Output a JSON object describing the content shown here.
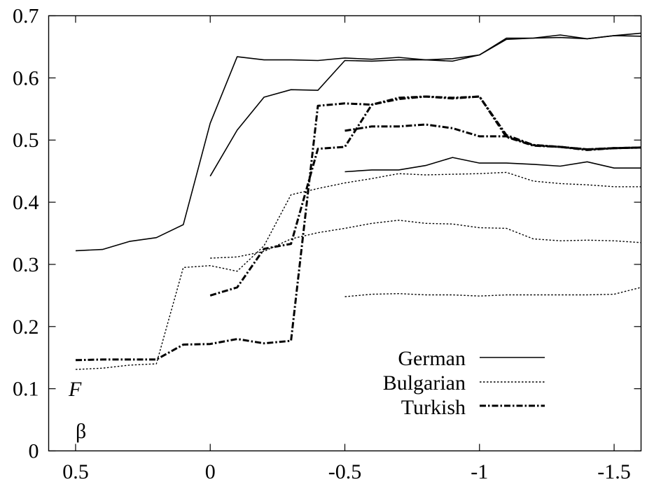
{
  "chart_data": {
    "type": "line",
    "ylabel": "F",
    "xlabel": "β",
    "xlim": [
      0.6,
      -1.6
    ],
    "ylim": [
      0,
      0.7
    ],
    "x_reversed": true,
    "x_ticks": [
      0.5,
      0,
      -0.5,
      -1,
      -1.5
    ],
    "x_tick_labels": [
      "0.5",
      "0",
      "-0.5",
      "-1",
      "-1.5"
    ],
    "y_ticks": [
      0,
      0.1,
      0.2,
      0.3,
      0.4,
      0.5,
      0.6,
      0.7
    ],
    "y_tick_labels": [
      "0",
      "0.1",
      "0.2",
      "0.3",
      "0.4",
      "0.5",
      "0.6",
      "0.7"
    ],
    "grid": false,
    "legend_position": "bottom-right",
    "legend": [
      {
        "label": "German",
        "style": "solid"
      },
      {
        "label": "Bulgarian",
        "style": "dotted"
      },
      {
        "label": "Turkish",
        "style": "dashdot"
      }
    ],
    "series": [
      {
        "language": "German",
        "style": "solid",
        "x": [
          0.5,
          0.4,
          0.3,
          0.2,
          0.1,
          0,
          -0.1,
          -0.2,
          -0.3,
          -0.4,
          -0.5,
          -0.6,
          -0.7,
          -0.8,
          -0.9,
          -1.0,
          -1.1,
          -1.2,
          -1.3,
          -1.4,
          -1.5,
          -1.6
        ],
        "y": [
          0.322,
          0.324,
          0.337,
          0.343,
          0.364,
          0.527,
          0.634,
          0.629,
          0.629,
          0.628,
          0.632,
          0.63,
          0.633,
          0.629,
          0.631,
          0.637,
          0.664,
          0.664,
          0.665,
          0.663,
          0.668,
          0.667
        ]
      },
      {
        "language": "German",
        "style": "solid",
        "x": [
          0,
          -0.1,
          -0.2,
          -0.3,
          -0.4,
          -0.5,
          -0.6,
          -0.7,
          -0.8,
          -0.9,
          -1.0,
          -1.1,
          -1.2,
          -1.3,
          -1.4,
          -1.5,
          -1.6
        ],
        "y": [
          0.442,
          0.516,
          0.569,
          0.581,
          0.58,
          0.628,
          0.627,
          0.629,
          0.629,
          0.627,
          0.637,
          0.662,
          0.664,
          0.669,
          0.663,
          0.668,
          0.672
        ]
      },
      {
        "language": "German",
        "style": "solid",
        "x": [
          -0.5,
          -0.6,
          -0.7,
          -0.8,
          -0.9,
          -1.0,
          -1.1,
          -1.2,
          -1.3,
          -1.4,
          -1.5,
          -1.6
        ],
        "y": [
          0.449,
          0.452,
          0.452,
          0.459,
          0.472,
          0.463,
          0.463,
          0.461,
          0.458,
          0.465,
          0.455,
          0.455
        ]
      },
      {
        "language": "Bulgarian",
        "style": "dotted",
        "x": [
          0.5,
          0.4,
          0.3,
          0.2,
          0.1,
          0,
          -0.1,
          -0.2,
          -0.3,
          -0.4,
          -0.5,
          -0.6,
          -0.7,
          -0.8,
          -0.9,
          -1.0,
          -1.1,
          -1.2,
          -1.3,
          -1.4,
          -1.5,
          -1.6
        ],
        "y": [
          0.131,
          0.133,
          0.138,
          0.14,
          0.295,
          0.298,
          0.289,
          0.33,
          0.412,
          0.422,
          0.431,
          0.438,
          0.446,
          0.444,
          0.445,
          0.446,
          0.448,
          0.434,
          0.43,
          0.428,
          0.425,
          0.425
        ]
      },
      {
        "language": "Bulgarian",
        "style": "dotted",
        "x": [
          0,
          -0.1,
          -0.2,
          -0.3,
          -0.4,
          -0.5,
          -0.6,
          -0.7,
          -0.8,
          -0.9,
          -1.0,
          -1.1,
          -1.2,
          -1.3,
          -1.4,
          -1.5,
          -1.6
        ],
        "y": [
          0.31,
          0.312,
          0.321,
          0.341,
          0.351,
          0.358,
          0.366,
          0.371,
          0.366,
          0.365,
          0.359,
          0.358,
          0.341,
          0.338,
          0.339,
          0.338,
          0.335
        ]
      },
      {
        "language": "Bulgarian",
        "style": "dotted",
        "x": [
          -0.5,
          -0.6,
          -0.7,
          -0.8,
          -0.9,
          -1.0,
          -1.1,
          -1.2,
          -1.3,
          -1.4,
          -1.5,
          -1.6
        ],
        "y": [
          0.248,
          0.252,
          0.253,
          0.251,
          0.251,
          0.249,
          0.251,
          0.251,
          0.251,
          0.251,
          0.252,
          0.263
        ]
      },
      {
        "language": "Turkish",
        "style": "dashdot",
        "x": [
          0.5,
          0.4,
          0.3,
          0.2,
          0.1,
          0,
          -0.1,
          -0.2,
          -0.3,
          -0.4,
          -0.5,
          -0.6,
          -0.7,
          -0.8,
          -0.9,
          -1.0,
          -1.1,
          -1.2,
          -1.3,
          -1.4,
          -1.5,
          -1.6
        ],
        "y": [
          0.146,
          0.147,
          0.147,
          0.147,
          0.171,
          0.172,
          0.18,
          0.173,
          0.177,
          0.555,
          0.559,
          0.557,
          0.566,
          0.57,
          0.568,
          0.57,
          0.508,
          0.492,
          0.489,
          0.484,
          0.487,
          0.488
        ]
      },
      {
        "language": "Turkish",
        "style": "dashdot",
        "x": [
          0,
          -0.1,
          -0.2,
          -0.3,
          -0.4,
          -0.5,
          -0.6,
          -0.7,
          -0.8,
          -0.9,
          -1.0,
          -1.1,
          -1.2,
          -1.3,
          -1.4,
          -1.5,
          -1.6
        ],
        "y": [
          0.25,
          0.263,
          0.325,
          0.333,
          0.486,
          0.489,
          0.557,
          0.568,
          0.57,
          0.567,
          0.57,
          0.505,
          0.491,
          0.489,
          0.485,
          0.487,
          0.488
        ]
      },
      {
        "language": "Turkish",
        "style": "dashdot",
        "x": [
          -0.5,
          -0.6,
          -0.7,
          -0.8,
          -0.9,
          -1.0,
          -1.1,
          -1.2,
          -1.3,
          -1.4,
          -1.5,
          -1.6
        ],
        "y": [
          0.515,
          0.522,
          0.522,
          0.525,
          0.519,
          0.506,
          0.506,
          0.492,
          0.489,
          0.485,
          0.487,
          0.488
        ]
      }
    ]
  }
}
